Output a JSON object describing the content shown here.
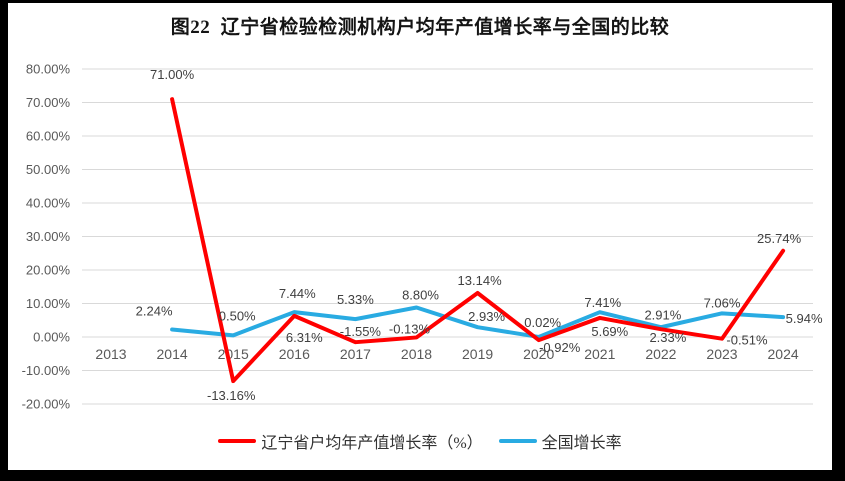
{
  "title": "图22  辽宁省检验检测机构户均年产值增长率与全国的比较",
  "chart_data": {
    "type": "line",
    "title": "图22  辽宁省检验检测机构户均年产值增长率与全国的比较",
    "categories": [
      "2013",
      "2014",
      "2015",
      "2016",
      "2017",
      "2018",
      "2019",
      "2020",
      "2021",
      "2022",
      "2023",
      "2024"
    ],
    "series": [
      {
        "name": "辽宁省户均年产值增长率（%）",
        "color": "#FF0000",
        "values": [
          null,
          71.0,
          -13.16,
          6.31,
          -1.55,
          -0.13,
          13.14,
          -0.92,
          5.69,
          2.33,
          -0.51,
          25.74
        ],
        "labels": [
          null,
          "71.00%",
          "-13.16%",
          "6.31%",
          "-1.55%",
          "-0.13%",
          "13.14%",
          "-0.92%",
          "5.69%",
          "2.33%",
          "-0.51%",
          "25.74%"
        ],
        "label_offsets": [
          null,
          [
            0,
            -20
          ],
          [
            -2,
            19
          ],
          [
            10,
            26
          ],
          [
            5,
            -6
          ],
          [
            -7,
            -4
          ],
          [
            2,
            -8
          ],
          [
            21,
            12
          ],
          [
            10,
            18
          ],
          [
            7,
            13
          ],
          [
            25,
            6
          ],
          [
            -4,
            -8
          ]
        ]
      },
      {
        "name": "全国增长率",
        "color": "#29ABE2",
        "values": [
          null,
          2.24,
          0.5,
          7.44,
          5.33,
          8.8,
          2.93,
          0.02,
          7.41,
          2.91,
          7.06,
          5.94
        ],
        "labels": [
          null,
          "2.24%",
          "0.50%",
          "7.44%",
          "5.33%",
          "8.80%",
          "2.93%",
          "0.02%",
          "7.41%",
          "2.91%",
          "7.06%",
          "5.94%"
        ],
        "label_offsets": [
          null,
          [
            -18,
            -14
          ],
          [
            4,
            -15
          ],
          [
            3,
            -14
          ],
          [
            0,
            -15
          ],
          [
            4,
            -8
          ],
          [
            9,
            -6
          ],
          [
            4,
            -10
          ],
          [
            3,
            -5
          ],
          [
            2,
            -8
          ],
          [
            0,
            -6
          ],
          [
            21,
            6
          ]
        ]
      }
    ],
    "ylim": [
      -20,
      80
    ],
    "ytick_step": 10,
    "y_ticks": [
      "80.00%",
      "70.00%",
      "60.00%",
      "50.00%",
      "40.00%",
      "30.00%",
      "20.00%",
      "10.00%",
      "0.00%",
      "-10.00%",
      "-20.00%"
    ],
    "grid": true,
    "legend_position": "bottom",
    "colors": {
      "grid": "#D9D9D9",
      "tick_text": "#595959",
      "data_label": "#404040",
      "background": "#FFFFFF",
      "frame": "#000000"
    }
  }
}
